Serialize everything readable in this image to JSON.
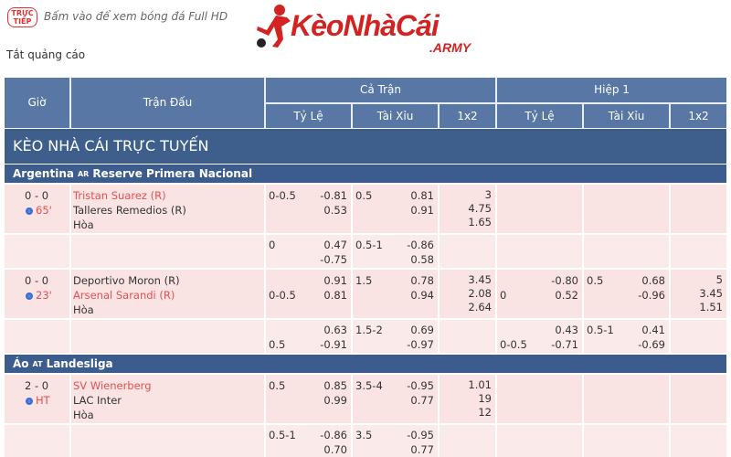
{
  "header": {
    "live_badge": "TRỰC TIẾP",
    "promo": "Bấm vào để xem bóng đá Full HD",
    "logo": "KèoNhàCái",
    "logo_suffix": ".ARMY",
    "hide_ads": "Tắt quảng cáo"
  },
  "table": {
    "headers": {
      "time": "Giờ",
      "match": "Trận Đấu",
      "full_time": "Cả Trận",
      "first_half": "Hiệp 1",
      "subheaders": [
        "Tỷ Lệ",
        "Tài Xỉu",
        "1x2",
        "Tỷ Lệ",
        "Tài Xỉu",
        "1x2"
      ]
    },
    "banner": "KÈO NHÀ CÁI TRỰC TUYẾN",
    "leagues": [
      {
        "country": "Argentina",
        "code": "AR",
        "name": "Reserve Primera Nacional",
        "matches": [
          {
            "score": "0 - 0",
            "minute": "65'",
            "home": "Tristan Suarez (R)",
            "away": "Talleres Remedios (R)",
            "draw": "Hòa",
            "favorite": "home",
            "lines": [
              {
                "ft_hdp": {
                  "home_line": "0-0.5",
                  "odds": [
                    "-0.81",
                    "0.53"
                  ]
                },
                "ft_ou": {
                  "line": "0.5",
                  "odds": [
                    "0.81",
                    "0.91"
                  ]
                },
                "ft_1x2": [
                  "3",
                  "4.75",
                  "1.65"
                ]
              },
              {
                "ft_hdp": {
                  "home_line": "0",
                  "odds": [
                    "0.47",
                    "-0.75"
                  ]
                },
                "ft_ou": {
                  "line": "0.5-1",
                  "odds": [
                    "-0.86",
                    "0.58"
                  ]
                }
              }
            ]
          },
          {
            "score": "0 - 0",
            "minute": "23'",
            "home": "Deportivo Moron (R)",
            "away": "Arsenal Sarandi (R)",
            "draw": "Hòa",
            "favorite": "away",
            "lines": [
              {
                "ft_hdp": {
                  "away_line": "0-0.5",
                  "odds": [
                    "0.91",
                    "0.81"
                  ]
                },
                "ft_ou": {
                  "line": "1.5",
                  "odds": [
                    "0.78",
                    "0.94"
                  ]
                },
                "ft_1x2": [
                  "3.45",
                  "2.08",
                  "2.64"
                ],
                "h1_hdp": {
                  "away_line": "0",
                  "odds": [
                    "-0.80",
                    "0.52"
                  ]
                },
                "h1_ou": {
                  "line": "0.5",
                  "odds": [
                    "0.68",
                    "-0.96"
                  ]
                },
                "h1_1x2": [
                  "5",
                  "3.45",
                  "1.51"
                ]
              },
              {
                "ft_hdp": {
                  "away_line": "0.5",
                  "odds": [
                    "0.63",
                    "-0.91"
                  ]
                },
                "ft_ou": {
                  "line": "1.5-2",
                  "odds": [
                    "0.69",
                    "-0.97"
                  ]
                },
                "h1_hdp": {
                  "away_line": "0-0.5",
                  "odds": [
                    "0.43",
                    "-0.71"
                  ]
                },
                "h1_ou": {
                  "line": "0.5-1",
                  "odds": [
                    "0.41",
                    "-0.69"
                  ]
                }
              }
            ]
          }
        ]
      },
      {
        "country": "Áo",
        "code": "AT",
        "name": "Landesliga",
        "matches": [
          {
            "score": "2 - 0",
            "minute": "HT",
            "home": "SV Wienerberg",
            "away": "LAC Inter",
            "draw": "Hòa",
            "favorite": "home",
            "lines": [
              {
                "ft_hdp": {
                  "home_line": "0.5",
                  "odds": [
                    "0.85",
                    "0.99"
                  ]
                },
                "ft_ou": {
                  "line": "3.5-4",
                  "odds": [
                    "-0.95",
                    "0.77"
                  ]
                },
                "ft_1x2": [
                  "1.01",
                  "19",
                  "12"
                ]
              },
              {
                "ft_hdp": {
                  "home_line": "0.5-1",
                  "odds": [
                    "-0.86",
                    "0.70"
                  ]
                },
                "ft_ou": {
                  "line": "3.5",
                  "odds": [
                    "-0.95",
                    "0.77"
                  ]
                }
              }
            ]
          }
        ]
      }
    ]
  }
}
